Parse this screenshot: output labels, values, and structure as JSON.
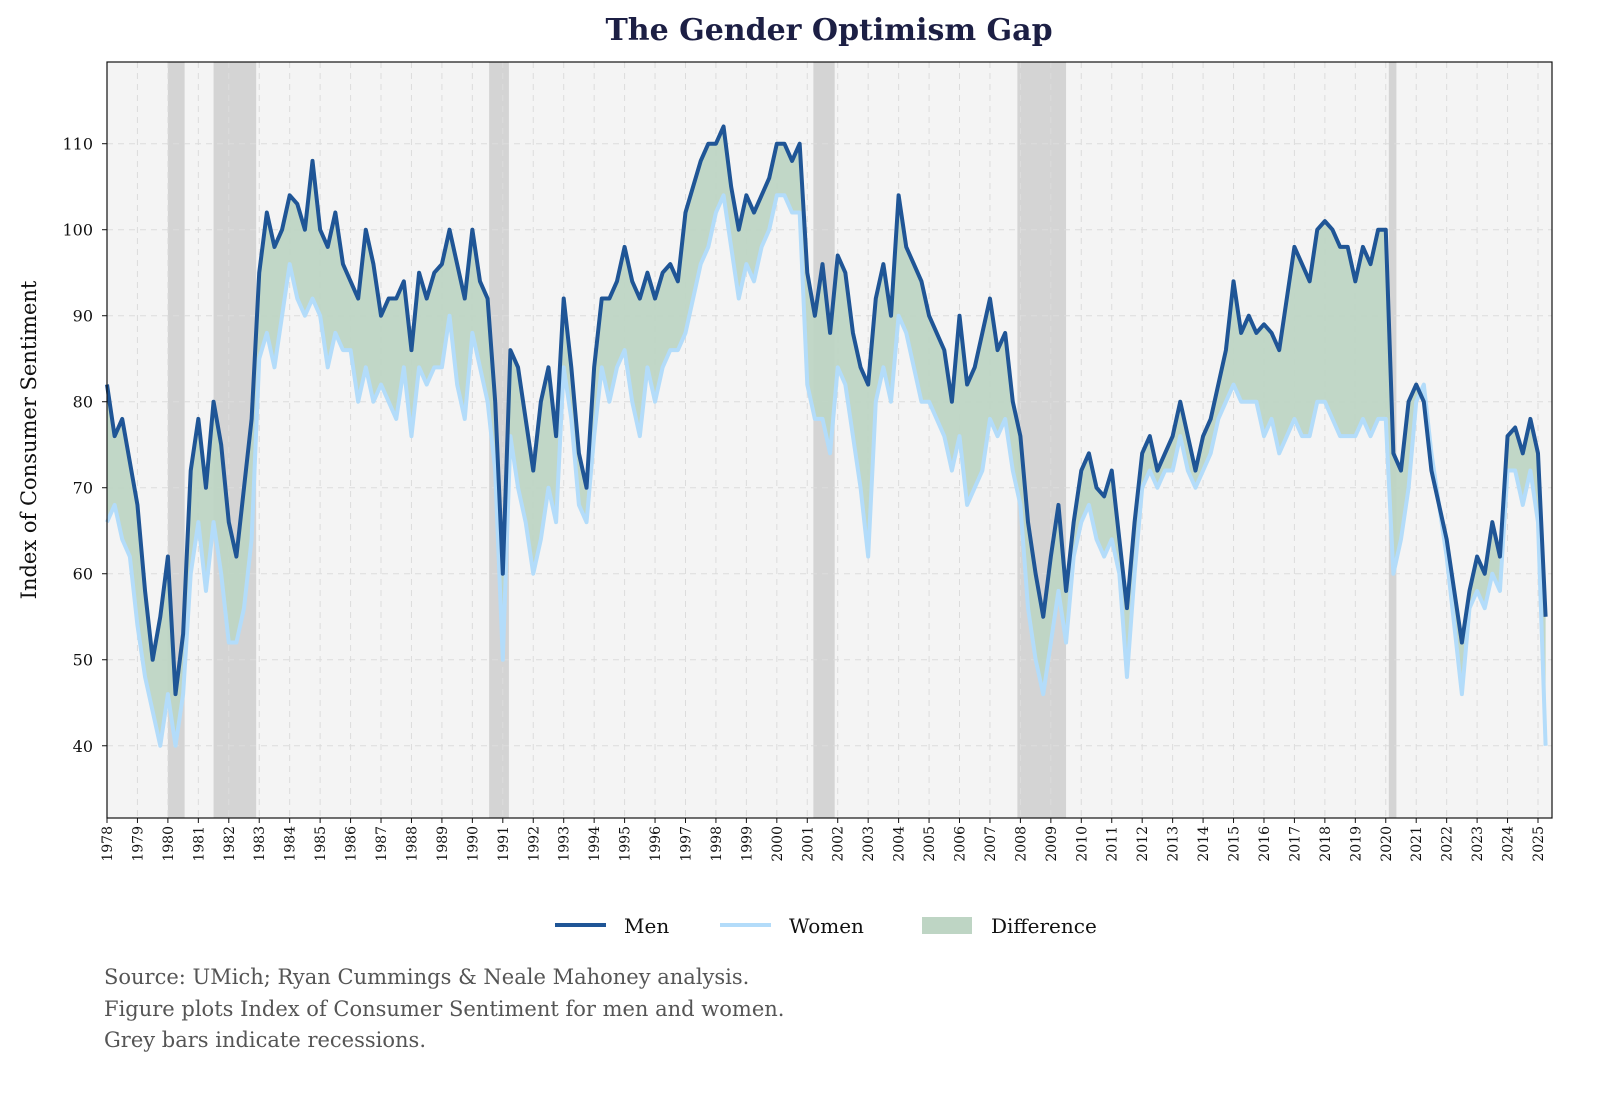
{
  "chart_data": {
    "type": "line",
    "title": "The Gender Optimism Gap",
    "xlabel": "",
    "ylabel": "Index of Consumer Sentiment",
    "xlim": [
      1978,
      2025.46
    ],
    "ylim": [
      31.6,
      119.5
    ],
    "yticks": [
      40,
      50,
      60,
      70,
      80,
      90,
      100,
      110
    ],
    "xticks": [
      1978,
      1979,
      1980,
      1981,
      1982,
      1983,
      1984,
      1985,
      1986,
      1987,
      1988,
      1989,
      1990,
      1991,
      1992,
      1993,
      1994,
      1995,
      1996,
      1997,
      1998,
      1999,
      2000,
      2001,
      2002,
      2003,
      2004,
      2005,
      2006,
      2007,
      2008,
      2009,
      2010,
      2011,
      2012,
      2013,
      2014,
      2015,
      2016,
      2017,
      2018,
      2019,
      2020,
      2021,
      2022,
      2023,
      2024,
      2025
    ],
    "grid": true,
    "legend_position": "bottom-center",
    "x_start": 1978,
    "x_step": 0.25,
    "recessions": [
      [
        1980.0,
        1980.55
      ],
      [
        1981.5,
        1982.9
      ],
      [
        1990.55,
        1991.2
      ],
      [
        2001.2,
        2001.9
      ],
      [
        2007.9,
        2009.5
      ],
      [
        2020.1,
        2020.35
      ]
    ],
    "series": [
      {
        "name": "Men",
        "color": "#1f5596",
        "values": [
          82,
          76,
          78,
          73,
          68,
          58,
          50,
          55,
          62,
          46,
          53,
          72,
          78,
          70,
          80,
          75,
          66,
          62,
          70,
          78,
          95,
          102,
          98,
          100,
          104,
          103,
          100,
          108,
          100,
          98,
          102,
          96,
          94,
          92,
          100,
          96,
          90,
          92,
          92,
          94,
          86,
          95,
          92,
          95,
          96,
          100,
          96,
          92,
          100,
          94,
          92,
          80,
          60,
          86,
          84,
          78,
          72,
          80,
          84,
          76,
          92,
          84,
          74,
          70,
          84,
          92,
          92,
          94,
          98,
          94,
          92,
          95,
          92,
          95,
          96,
          94,
          102,
          105,
          108,
          110,
          110,
          112,
          105,
          100,
          104,
          102,
          104,
          106,
          110,
          110,
          108,
          110,
          95,
          90,
          96,
          88,
          97,
          95,
          88,
          84,
          82,
          92,
          96,
          90,
          104,
          98,
          96,
          94,
          90,
          88,
          86,
          80,
          90,
          82,
          84,
          88,
          92,
          86,
          88,
          80,
          76,
          66,
          60,
          55,
          62,
          68,
          58,
          66,
          72,
          74,
          70,
          69,
          72,
          64,
          56,
          66,
          74,
          76,
          72,
          74,
          76,
          80,
          76,
          72,
          76,
          78,
          82,
          86,
          94,
          88,
          90,
          88,
          89,
          88,
          86,
          92,
          98,
          96,
          94,
          100,
          101,
          100,
          98,
          98,
          94,
          98,
          96,
          100,
          100,
          74,
          72,
          80,
          82,
          80,
          72,
          68,
          64,
          58,
          52,
          58,
          62,
          60,
          66,
          62,
          76,
          77,
          74,
          78,
          74,
          55
        ]
      },
      {
        "name": "Women",
        "color": "#b3dcfa",
        "values": [
          66,
          68,
          64,
          62,
          54,
          48,
          44,
          40,
          46,
          40,
          46,
          60,
          66,
          58,
          66,
          60,
          52,
          52,
          56,
          64,
          85,
          88,
          84,
          90,
          96,
          92,
          90,
          92,
          90,
          84,
          88,
          86,
          86,
          80,
          84,
          80,
          82,
          80,
          78,
          84,
          76,
          84,
          82,
          84,
          84,
          90,
          82,
          78,
          88,
          84,
          80,
          72,
          50,
          76,
          70,
          66,
          60,
          64,
          70,
          66,
          84,
          78,
          68,
          66,
          76,
          84,
          80,
          84,
          86,
          80,
          76,
          84,
          80,
          84,
          86,
          86,
          88,
          92,
          96,
          98,
          102,
          104,
          98,
          92,
          96,
          94,
          98,
          100,
          104,
          104,
          102,
          102,
          82,
          78,
          78,
          74,
          84,
          82,
          76,
          70,
          62,
          80,
          84,
          80,
          90,
          88,
          84,
          80,
          80,
          78,
          76,
          72,
          76,
          68,
          70,
          72,
          78,
          76,
          78,
          72,
          68,
          56,
          50,
          46,
          52,
          58,
          52,
          62,
          66,
          68,
          64,
          62,
          64,
          60,
          48,
          60,
          70,
          72,
          70,
          72,
          72,
          76,
          72,
          70,
          72,
          74,
          78,
          80,
          82,
          80,
          80,
          80,
          76,
          78,
          74,
          76,
          78,
          76,
          76,
          80,
          80,
          78,
          76,
          76,
          76,
          78,
          76,
          78,
          78,
          60,
          64,
          70,
          80,
          82,
          74,
          68,
          62,
          54,
          46,
          56,
          58,
          56,
          60,
          58,
          72,
          72,
          68,
          72,
          66,
          40
        ]
      },
      {
        "name": "Difference",
        "color": "#bed5c4",
        "type": "area-between"
      }
    ],
    "legend": [
      "Men",
      "Women",
      "Difference"
    ]
  },
  "notes": [
    "Source: UMich; Ryan Cummings & Neale Mahoney analysis.",
    "Figure plots Index of Consumer Sentiment for men and women.",
    "Grey bars indicate recessions."
  ],
  "colors": {
    "background": "#f4f4f4",
    "recession": "#d4d4d4",
    "title": "#1c1f44"
  }
}
